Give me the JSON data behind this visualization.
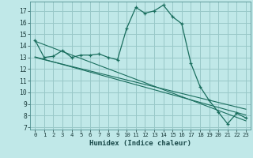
{
  "xlabel": "Humidex (Indice chaleur)",
  "background_color": "#c0e8e8",
  "grid_color": "#98c8c8",
  "line_color": "#1a6e5e",
  "xlim": [
    -0.5,
    23.5
  ],
  "ylim": [
    6.8,
    17.8
  ],
  "yticks": [
    7,
    8,
    9,
    10,
    11,
    12,
    13,
    14,
    15,
    16,
    17
  ],
  "xticks": [
    0,
    1,
    2,
    3,
    4,
    5,
    6,
    7,
    8,
    9,
    10,
    11,
    12,
    13,
    14,
    15,
    16,
    17,
    18,
    19,
    20,
    21,
    22,
    23
  ],
  "main_line_x": [
    0,
    1,
    2,
    3,
    4,
    5,
    6,
    7,
    8,
    9,
    10,
    11,
    12,
    13,
    14,
    15,
    16,
    17,
    18,
    19,
    20,
    21,
    22,
    23
  ],
  "main_line_y": [
    14.5,
    13.0,
    13.1,
    13.6,
    13.0,
    13.2,
    13.2,
    13.3,
    13.0,
    12.8,
    15.5,
    17.3,
    16.8,
    17.0,
    17.5,
    16.5,
    15.9,
    12.5,
    10.5,
    9.3,
    8.3,
    7.3,
    8.2,
    7.8
  ],
  "trend1_x": [
    0,
    23
  ],
  "trend1_y": [
    14.4,
    7.55
  ],
  "trend2_x": [
    0,
    23
  ],
  "trend2_y": [
    13.05,
    8.05
  ],
  "trend3_x": [
    0,
    23
  ],
  "trend3_y": [
    13.0,
    8.55
  ]
}
